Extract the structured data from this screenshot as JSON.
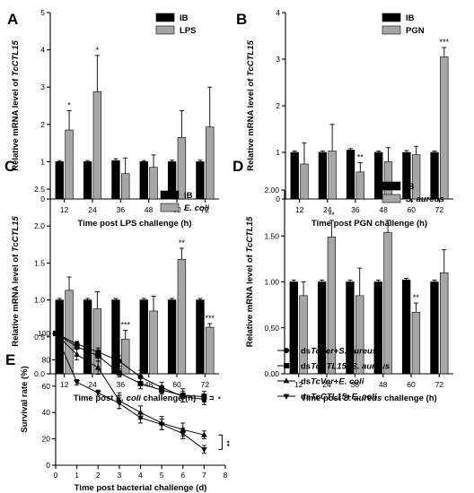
{
  "colors": {
    "ib": "#000000",
    "treatment": "#a6a6a6",
    "text": "#000000",
    "background": "#ffffff"
  },
  "chart_data": [
    {
      "panel": "A",
      "type": "bar",
      "ylabel_prefix": "Relative mRNA level of ",
      "ylabel_gene": "TcCTL15",
      "xlabel_parts": [
        {
          "t": "Time post LPS challenge (h)",
          "i": false
        }
      ],
      "categories": [
        "12",
        "24",
        "36",
        "48",
        "60",
        "72"
      ],
      "ylim": [
        0,
        5
      ],
      "yticks": [
        0,
        1,
        2,
        3,
        4,
        5
      ],
      "series": [
        {
          "name": "IB",
          "italic": false,
          "values": [
            1.0,
            1.0,
            1.03,
            1.0,
            1.0,
            1.0
          ],
          "errors": [
            0.03,
            0.03,
            0.05,
            0.03,
            0.04,
            0.04
          ]
        },
        {
          "name": "LPS",
          "italic": false,
          "values": [
            1.85,
            2.88,
            0.68,
            0.85,
            1.65,
            1.93
          ],
          "errors": [
            0.52,
            0.97,
            0.42,
            0.33,
            0.72,
            1.07
          ]
        }
      ],
      "significance": [
        "*",
        "*",
        "",
        "",
        "",
        ""
      ],
      "legend": "top-right"
    },
    {
      "panel": "B",
      "type": "bar",
      "ylabel_prefix": "Relative mRNA level of ",
      "ylabel_gene": "TcCTL15",
      "xlabel_parts": [
        {
          "t": "Time post PGN challenge (h)",
          "i": false
        }
      ],
      "categories": [
        "12",
        "24",
        "36",
        "48",
        "60",
        "72"
      ],
      "ylim": [
        0,
        4
      ],
      "yticks": [
        0,
        1,
        2,
        3,
        4
      ],
      "series": [
        {
          "name": "IB",
          "italic": false,
          "values": [
            1.0,
            1.0,
            1.05,
            1.0,
            1.0,
            1.0
          ],
          "errors": [
            0.03,
            0.03,
            0.03,
            0.03,
            0.04,
            0.03
          ]
        },
        {
          "name": "PGN",
          "italic": false,
          "values": [
            0.75,
            1.03,
            0.58,
            0.8,
            0.95,
            3.05
          ],
          "errors": [
            0.45,
            0.57,
            0.2,
            0.3,
            0.18,
            0.2
          ]
        }
      ],
      "significance": [
        "",
        "",
        "**",
        "",
        "",
        "***"
      ],
      "legend": "top-right"
    },
    {
      "panel": "C",
      "type": "bar",
      "ylabel_prefix": "Relative mRNA level of ",
      "ylabel_gene": "TcCTL15",
      "xlabel_parts": [
        {
          "t": "Time post ",
          "i": false
        },
        {
          "t": "E. coli",
          "i": true
        },
        {
          "t": " challenge (h)",
          "i": false
        }
      ],
      "categories": [
        "12",
        "24",
        "36",
        "48",
        "60",
        "72"
      ],
      "ylim": [
        0,
        2.5
      ],
      "yticks": [
        0.0,
        0.5,
        1.0,
        1.5,
        2.0,
        2.5
      ],
      "ytick_labels": [
        "0.0",
        "0.5",
        "1.0",
        "1.5",
        "2.0",
        "2.5"
      ],
      "series": [
        {
          "name": "IB",
          "italic": false,
          "values": [
            1.0,
            1.0,
            1.0,
            1.0,
            1.0,
            1.0
          ],
          "errors": [
            0.02,
            0.02,
            0.02,
            0.02,
            0.02,
            0.02
          ]
        },
        {
          "name": "E. coli",
          "italic": true,
          "values": [
            1.13,
            0.88,
            0.47,
            0.85,
            1.55,
            0.63
          ],
          "errors": [
            0.18,
            0.23,
            0.12,
            0.2,
            0.15,
            0.05
          ]
        }
      ],
      "significance": [
        "",
        "",
        "***",
        "",
        "**",
        "***"
      ],
      "legend": "top-right"
    },
    {
      "panel": "D",
      "type": "bar",
      "ylabel_prefix": "Relative mRNA level of ",
      "ylabel_gene": "TcCTL15",
      "xlabel_parts": [
        {
          "t": "Time post ",
          "i": false
        },
        {
          "t": "S. aureus",
          "i": true
        },
        {
          "t": " challenge (h)",
          "i": false
        }
      ],
      "categories": [
        "12",
        "24",
        "36",
        "48",
        "60",
        "72"
      ],
      "ylim": [
        0,
        2.0
      ],
      "yticks": [
        0.0,
        0.5,
        1.0,
        1.5,
        2.0
      ],
      "ytick_labels": [
        "0.00",
        "0.50",
        "1.00",
        "1.50",
        "2.00"
      ],
      "series": [
        {
          "name": "IB",
          "italic": false,
          "values": [
            1.0,
            1.0,
            1.0,
            1.0,
            1.02,
            1.0
          ],
          "errors": [
            0.02,
            0.02,
            0.02,
            0.02,
            0.02,
            0.02
          ]
        },
        {
          "name": "S. aureus",
          "italic": true,
          "values": [
            0.85,
            1.49,
            0.85,
            1.54,
            0.67,
            1.1
          ],
          "errors": [
            0.15,
            0.18,
            0.3,
            0.13,
            0.1,
            0.25
          ]
        }
      ],
      "significance": [
        "",
        "**",
        "",
        "",
        "**",
        ""
      ],
      "legend": "top-right"
    },
    {
      "panel": "E",
      "type": "line",
      "ylabel": "Survival rate (%)",
      "xlabel": "Time post bacterial challenge (d)",
      "xlim": [
        0,
        8
      ],
      "ylim": [
        0,
        100
      ],
      "xticks": [
        0,
        1,
        2,
        3,
        4,
        5,
        6,
        7,
        8
      ],
      "yticks": [
        0,
        20,
        40,
        60,
        80,
        100
      ],
      "x": [
        0,
        1,
        2,
        3,
        4,
        5,
        6,
        7
      ],
      "series": [
        {
          "label_parts": [
            {
              "t": "ds",
              "i": false
            },
            {
              "t": "TcVer",
              "i": true
            },
            {
              "t": "+",
              "i": false
            },
            {
              "t": "S. aureus",
              "i": true
            }
          ],
          "marker": "circle",
          "values": [
            100,
            92,
            86,
            79,
            67,
            59,
            52,
            50
          ],
          "errors": [
            0,
            2,
            3,
            4,
            5,
            4,
            4,
            4
          ]
        },
        {
          "label_parts": [
            {
              "t": "ds",
              "i": false
            },
            {
              "t": "TcCTL15",
              "i": true
            },
            {
              "t": "+",
              "i": false
            },
            {
              "t": "S. aureus",
              "i": true
            }
          ],
          "marker": "square",
          "values": [
            100,
            90,
            83,
            70,
            62,
            57,
            53,
            52
          ],
          "errors": [
            0,
            2,
            4,
            3,
            4,
            3,
            5,
            4
          ]
        },
        {
          "label_parts": [
            {
              "t": "ds",
              "i": false
            },
            {
              "t": "TcVer",
              "i": true
            },
            {
              "t": "+",
              "i": false
            },
            {
              "t": "E. coli",
              "i": true
            }
          ],
          "marker": "triangle-up",
          "values": [
            100,
            84,
            74,
            49,
            40,
            32,
            27,
            23
          ],
          "errors": [
            0,
            4,
            5,
            6,
            5,
            5,
            5,
            3
          ]
        },
        {
          "label_parts": [
            {
              "t": "ds",
              "i": false
            },
            {
              "t": "TcCTL15",
              "i": true
            },
            {
              "t": "+",
              "i": false
            },
            {
              "t": "E. coli",
              "i": true
            }
          ],
          "marker": "triangle-down",
          "values": [
            100,
            63,
            55,
            47,
            36,
            31,
            24,
            12
          ],
          "errors": [
            0,
            2,
            2,
            4,
            4,
            4,
            4,
            3
          ]
        }
      ],
      "brackets": [
        {
          "between": [
            0,
            1
          ],
          "text": "*"
        },
        {
          "between": [
            2,
            3
          ],
          "text": "**"
        }
      ],
      "legend": "right"
    }
  ]
}
